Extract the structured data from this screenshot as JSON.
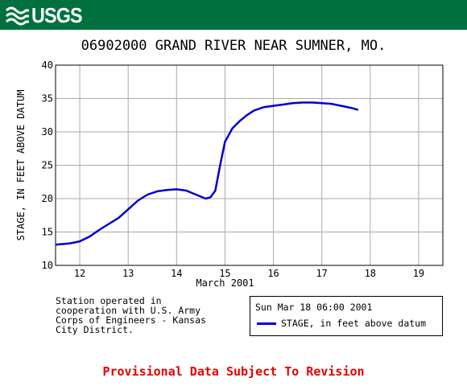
{
  "header": {
    "logo_text": "USGS",
    "logo_icon": "usgs-wave-icon",
    "background": "#00713e"
  },
  "title": "06902000 GRAND RIVER NEAR SUMNER, MO.",
  "station_note": "Station operated in\ncooperation with U.S. Army\nCorps of Engineers - Kansas\nCity District.",
  "legend": {
    "date": "Sun Mar 18 06:00 2001",
    "series_label": "STAGE, in feet above datum"
  },
  "provisional": "Provisional Data Subject To Revision",
  "colors": {
    "series": "#0000cc",
    "provisional": "#e60000",
    "grid": "#aaaaaa"
  },
  "chart_data": {
    "type": "line",
    "ylabel": "STAGE, IN FEET ABOVE DATUM",
    "xlabel": "March 2001",
    "xlim": [
      11.5,
      19.5
    ],
    "ylim": [
      10,
      40
    ],
    "x_ticks": [
      12,
      13,
      14,
      15,
      16,
      17,
      18,
      19
    ],
    "y_ticks": [
      10,
      15,
      20,
      25,
      30,
      35,
      40
    ],
    "grid": true,
    "legend_placement": "below-right",
    "series": [
      {
        "name": "STAGE, in feet above datum",
        "x": [
          11.5,
          11.8,
          12.0,
          12.2,
          12.4,
          12.6,
          12.8,
          13.0,
          13.2,
          13.4,
          13.6,
          13.8,
          14.0,
          14.2,
          14.4,
          14.6,
          14.7,
          14.8,
          14.9,
          15.0,
          15.15,
          15.3,
          15.45,
          15.6,
          15.8,
          16.0,
          16.2,
          16.4,
          16.6,
          16.8,
          17.0,
          17.2,
          17.4,
          17.6,
          17.75
        ],
        "y": [
          13.1,
          13.3,
          13.6,
          14.3,
          15.3,
          16.2,
          17.1,
          18.4,
          19.7,
          20.6,
          21.1,
          21.3,
          21.4,
          21.2,
          20.6,
          20.0,
          20.2,
          21.2,
          25.0,
          28.5,
          30.5,
          31.6,
          32.5,
          33.2,
          33.7,
          33.9,
          34.1,
          34.3,
          34.4,
          34.4,
          34.3,
          34.2,
          33.9,
          33.6,
          33.3
        ]
      }
    ]
  }
}
